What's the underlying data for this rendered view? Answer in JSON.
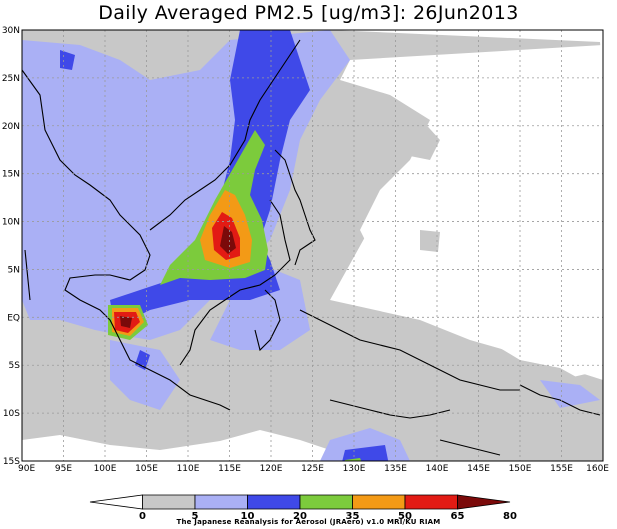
{
  "title": "Daily Averaged PM2.5 [ug/m3]: 26Jun2013",
  "credit": "The Japanese Reanalysis for Aerosol (JRAero) v1.0 MRI/KU RIAM",
  "lat_labels": [
    "30N",
    "25N",
    "20N",
    "15N",
    "10N",
    "5N",
    "EQ",
    "5S",
    "10S",
    "15S"
  ],
  "lon_labels": [
    "90E",
    "95E",
    "100E",
    "105E",
    "110E",
    "115E",
    "120E",
    "125E",
    "130E",
    "135E",
    "140E",
    "145E",
    "150E",
    "155E",
    "160E"
  ],
  "colorbar": {
    "levels": [
      "0",
      "5",
      "10",
      "20",
      "35",
      "50",
      "65",
      "80"
    ],
    "colors": [
      "#ffffff",
      "#c8c8c8",
      "#aab0f5",
      "#3f49e8",
      "#7ccb3c",
      "#f39a16",
      "#e21b14",
      "#7b0a0a"
    ]
  },
  "map": {
    "extent": {
      "lon_min": 90,
      "lon_max": 160,
      "lat_min": -15,
      "lat_max": 30
    }
  }
}
